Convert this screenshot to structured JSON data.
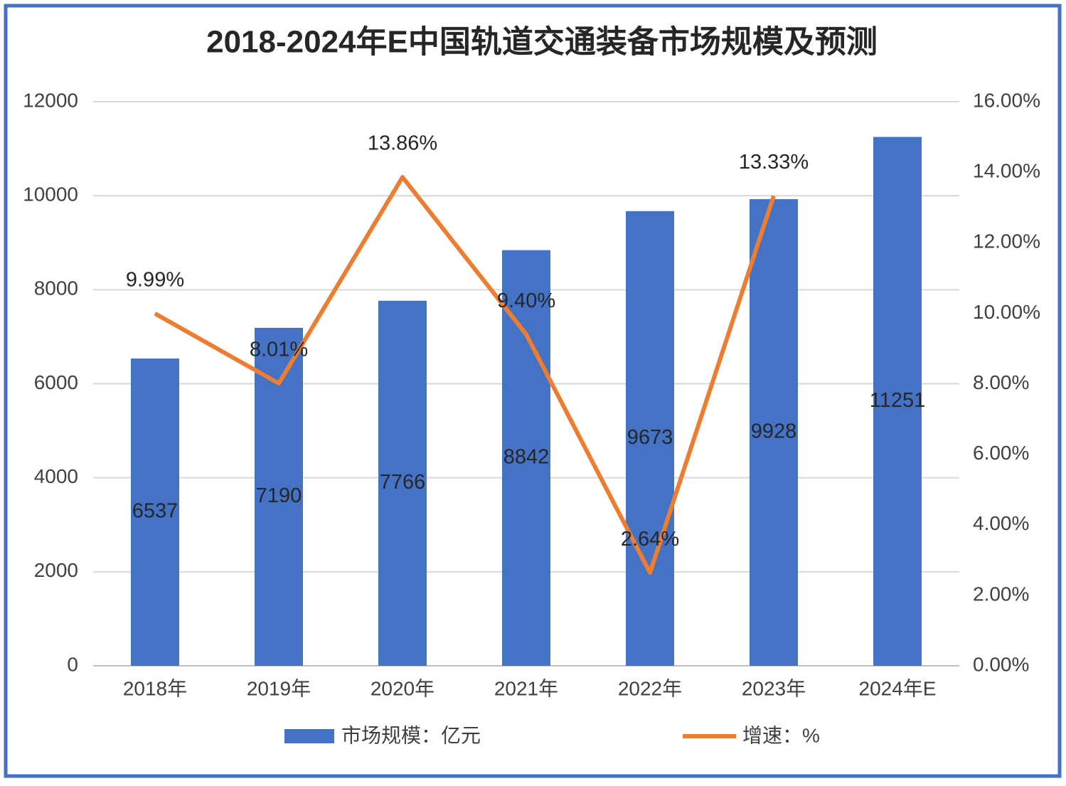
{
  "chart_data": {
    "type": "bar_line",
    "title": "2018-2024年E中国轨道交通装备市场规模及预测",
    "categories": [
      "2018年",
      "2019年",
      "2020年",
      "2021年",
      "2022年",
      "2023年",
      "2024年E"
    ],
    "series": [
      {
        "name": "市场规模：亿元",
        "type": "bar",
        "color": "#4472c4",
        "axis": "y",
        "values": [
          6537,
          7190,
          7766,
          8842,
          9673,
          9928,
          11251
        ]
      },
      {
        "name": "增速：%",
        "type": "line",
        "color": "#ed7d31",
        "axis": "y2",
        "values": [
          9.99,
          8.01,
          13.86,
          9.4,
          2.64,
          13.33,
          null
        ],
        "value_labels": [
          "9.99%",
          "8.01%",
          "13.86%",
          "9.40%",
          "2.64%",
          "13.33%",
          null
        ]
      }
    ],
    "ylim": [
      0,
      12000
    ],
    "yticks": [
      0,
      2000,
      4000,
      6000,
      8000,
      10000,
      12000
    ],
    "y2lim": [
      0,
      16
    ],
    "y2ticks": [
      {
        "value": 0,
        "label": "0.00%"
      },
      {
        "value": 2,
        "label": "2.00%"
      },
      {
        "value": 4,
        "label": "4.00%"
      },
      {
        "value": 6,
        "label": "6.00%"
      },
      {
        "value": 8,
        "label": "8.00%"
      },
      {
        "value": 10,
        "label": "10.00%"
      },
      {
        "value": 12,
        "label": "12.00%"
      },
      {
        "value": 14,
        "label": "14.00%"
      },
      {
        "value": 16,
        "label": "16.00%"
      }
    ],
    "grid": true,
    "legend": "bottom"
  }
}
